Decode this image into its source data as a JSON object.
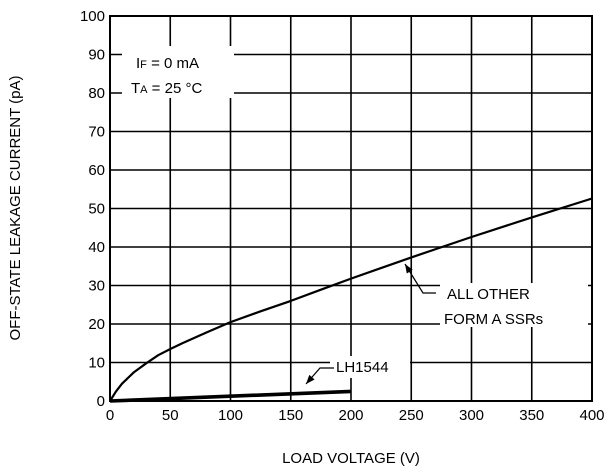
{
  "chart_data": {
    "type": "line",
    "title": "",
    "xlabel": "LOAD VOLTAGE (V)",
    "ylabel": "OFF-STATE LEAKAGE  CURRENT (pA)",
    "xlim": [
      0,
      400
    ],
    "ylim": [
      0,
      100
    ],
    "x_ticks": [
      0,
      50,
      100,
      150,
      200,
      250,
      300,
      350,
      400
    ],
    "y_ticks": [
      0,
      10,
      20,
      30,
      40,
      50,
      60,
      70,
      80,
      90,
      100
    ],
    "grid": true,
    "conditions": {
      "if_main": "I",
      "if_sub": "F",
      "if_rest": " = 0 mA",
      "ta_main": "T",
      "ta_sub": "A",
      "ta_rest": " = 25 °C"
    },
    "series": [
      {
        "name": "ALL OTHER FORM A SSRs",
        "label_lines": [
          "ALL OTHER",
          "FORM A SSRs"
        ],
        "x": [
          0,
          5,
          10,
          20,
          30,
          40,
          50,
          60,
          80,
          100,
          125,
          150,
          175,
          200,
          250,
          300,
          350,
          400
        ],
        "y": [
          0,
          2.5,
          4.5,
          7.5,
          9.8,
          11.9,
          13.5,
          15,
          17.8,
          20.5,
          23.3,
          26,
          28.9,
          31.8,
          37.3,
          42.6,
          47.7,
          52.6
        ]
      },
      {
        "name": "LH1544",
        "label_lines": [
          "LH1544"
        ],
        "x": [
          0,
          200
        ],
        "y": [
          0,
          2.5
        ]
      }
    ]
  }
}
